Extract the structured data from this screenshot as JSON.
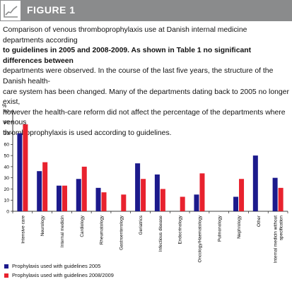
{
  "header": {
    "title": "FIGURE 1",
    "icon": "line-chart-icon"
  },
  "caption": {
    "line1": "Comparison of venous thromboprophylaxis use at Danish internal medicine departments according",
    "line2_bold": "to guidelines in 2005 and 2008-2009. As shown in Table 1 no significant differences between",
    "line3": "departments were observed. In the course of the last five years, the structure of the Danish health-",
    "line4": "care system has been changed. Many of the departments dating back to 2005 no longer exist,",
    "line5": "however the health-care reform did not affect the percentage of the departments where venous",
    "line6": "thromboprophylaxis is used according to guidelines."
  },
  "chart_data": {
    "type": "bar",
    "ylabel": "%",
    "ylim": [
      0,
      90
    ],
    "yticks": [
      0,
      10,
      20,
      30,
      40,
      50,
      60,
      70,
      80,
      90
    ],
    "categories": [
      "Intensive care",
      "Neurology",
      "Internal medicin",
      "Cardiology",
      "Rheumatology",
      "Gastroenterology",
      "Geriatrics",
      "Infectious disease",
      "Endocrinology",
      "Oncology/Haematology",
      "Pulmonology",
      "Nephrology",
      "Other",
      "Internal medicin without specification"
    ],
    "series": [
      {
        "name": "Prophylaxis used with guidelines 2005",
        "color": "#1c1a8c",
        "values": [
          70,
          36,
          23,
          29,
          21,
          0,
          43,
          33,
          0,
          15,
          0,
          13,
          50,
          30
        ]
      },
      {
        "name": "Prophylaxis used with guidelines 2008/2009",
        "color": "#e8222e",
        "values": [
          78,
          44,
          23,
          40,
          17,
          15,
          29,
          20,
          13,
          34,
          0,
          29,
          0,
          21
        ]
      }
    ],
    "grid": false,
    "legend_position": "bottom-left"
  }
}
